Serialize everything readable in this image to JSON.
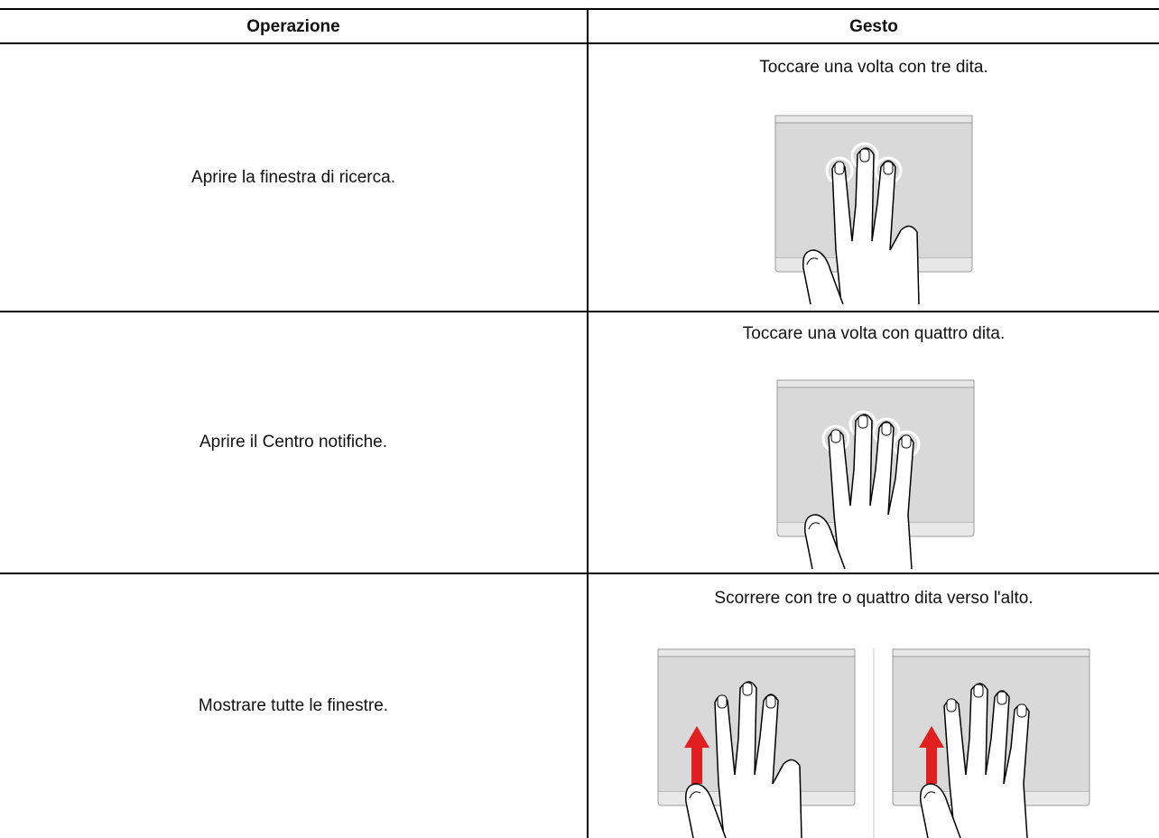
{
  "table": {
    "header": [
      "Operazione",
      "Gesto"
    ],
    "rows": [
      [
        "Aprire la finestra di ricerca.",
        "Toccare una volta con tre dita."
      ],
      [
        "Aprire il Centro notifiche.",
        "Toccare una volta con quattro dita."
      ],
      [
        "Mostrare tutte le finestre.",
        "Scorrere con tre o quattro dita verso l'alto."
      ]
    ]
  }
}
